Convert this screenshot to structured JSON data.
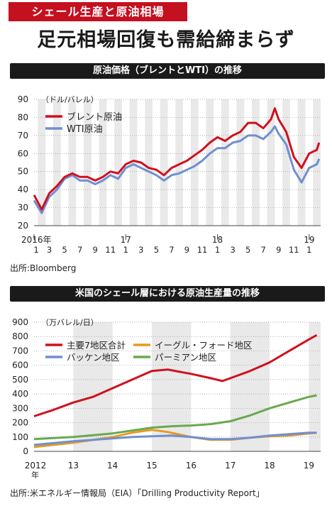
{
  "tag": "シェール生産と原油相場",
  "headline": "足元相場回復も需給締まらず",
  "chart_data": [
    {
      "type": "line",
      "title": "原油価格（ブレントとWTI）の推移",
      "ylabel": "（ドル/バレル）",
      "ylim": [
        20,
        90
      ],
      "y_ticks": [
        "20",
        "30",
        "40",
        "50",
        "60",
        "70",
        "80",
        "90"
      ],
      "x_ticks": [
        "1",
        "3",
        "5",
        "7",
        "9",
        "11",
        "1",
        "3",
        "5",
        "7",
        "9",
        "11",
        "1",
        "3",
        "5",
        "7",
        "9",
        "11",
        "1"
      ],
      "x_year_labels": [
        "2016年",
        "17",
        "18",
        "19"
      ],
      "x_range": [
        0,
        37.5
      ],
      "grid": "alternating vertical bands",
      "legend": "top-left",
      "series": [
        {
          "name": "ブレント原油",
          "color": "#d0101e",
          "x": [
            0,
            1,
            2,
            3,
            4,
            5,
            6,
            7,
            8,
            9,
            10,
            11,
            12,
            13,
            14,
            15,
            16,
            17,
            18,
            19,
            20,
            21,
            22,
            23,
            24,
            25,
            26,
            27,
            28,
            29,
            30,
            31,
            31.5,
            32,
            33,
            34,
            35,
            36,
            37,
            37.3
          ],
          "values": [
            37,
            29,
            38,
            42,
            47,
            49,
            47,
            47,
            45,
            47,
            50,
            49,
            54,
            56,
            55,
            52,
            51,
            48,
            52,
            54,
            56,
            59,
            62,
            66,
            69,
            67,
            70,
            72,
            77,
            77,
            74,
            79,
            85,
            79,
            72,
            58,
            52,
            60,
            62,
            66
          ]
        },
        {
          "name": "WTI原油",
          "color": "#6f8fd0",
          "x": [
            0,
            1,
            2,
            3,
            4,
            5,
            6,
            7,
            8,
            9,
            10,
            11,
            12,
            13,
            14,
            15,
            16,
            17,
            18,
            19,
            20,
            21,
            22,
            23,
            24,
            25,
            26,
            27,
            28,
            29,
            30,
            31,
            31.5,
            32,
            33,
            34,
            35,
            36,
            37,
            37.3
          ],
          "values": [
            34,
            27,
            36,
            40,
            46,
            48,
            45,
            45,
            43,
            45,
            48,
            46,
            52,
            54,
            52,
            50,
            48,
            45,
            48,
            49,
            51,
            53,
            56,
            60,
            63,
            63,
            66,
            67,
            70,
            70,
            68,
            72,
            75,
            71,
            65,
            51,
            44,
            52,
            54,
            57
          ]
        }
      ],
      "source": "出所:Bloomberg"
    },
    {
      "type": "line",
      "title": "米国のシェール層における原油生産量の推移",
      "ylabel": "（万バレル/日）",
      "ylim": [
        0,
        900
      ],
      "y_ticks": [
        "0",
        "100",
        "200",
        "300",
        "400",
        "500",
        "600",
        "700",
        "800",
        "900"
      ],
      "x_ticks": [
        "2012",
        "13",
        "14",
        "15",
        "16",
        "17",
        "18",
        "19"
      ],
      "x_sub": "年",
      "x_range": [
        2012,
        2019.3
      ],
      "grid": "alternating vertical bands",
      "legend": "top-left",
      "series": [
        {
          "name": "主要7地区合計",
          "color": "#d0101e",
          "x": [
            2012,
            2012.5,
            2013,
            2013.5,
            2014,
            2014.5,
            2015,
            2015.4,
            2015.8,
            2016,
            2016.5,
            2016.8,
            2017,
            2017.5,
            2018,
            2018.5,
            2019,
            2019.2
          ],
          "values": [
            245,
            290,
            340,
            380,
            440,
            500,
            560,
            570,
            550,
            540,
            510,
            490,
            510,
            560,
            620,
            700,
            780,
            810
          ]
        },
        {
          "name": "イーグル・フォード地区",
          "color": "#e89a20",
          "x": [
            2012,
            2013,
            2014,
            2014.5,
            2015,
            2015.4,
            2016,
            2016.5,
            2017,
            2017.5,
            2018,
            2018.5,
            2019,
            2019.2
          ],
          "values": [
            30,
            60,
            100,
            130,
            150,
            135,
            100,
            80,
            80,
            95,
            105,
            110,
            125,
            130
          ]
        },
        {
          "name": "バッケン地区",
          "color": "#6f8fd0",
          "x": [
            2012,
            2013,
            2014,
            2014.5,
            2015,
            2015.5,
            2016,
            2016.5,
            2017,
            2017.5,
            2018,
            2018.5,
            2019,
            2019.2
          ],
          "values": [
            45,
            70,
            90,
            100,
            105,
            110,
            100,
            85,
            85,
            95,
            110,
            120,
            130,
            130
          ]
        },
        {
          "name": "パーミアン地区",
          "color": "#6aa84f",
          "x": [
            2012,
            2013,
            2014,
            2015,
            2015.5,
            2016,
            2016.5,
            2017,
            2017.5,
            2018,
            2018.5,
            2019,
            2019.2
          ],
          "values": [
            85,
            100,
            125,
            165,
            175,
            180,
            190,
            210,
            250,
            300,
            340,
            380,
            390
          ]
        }
      ],
      "source": "出所:米エネルギー情報局（EIA）「Drilling Productivity Report」"
    }
  ]
}
